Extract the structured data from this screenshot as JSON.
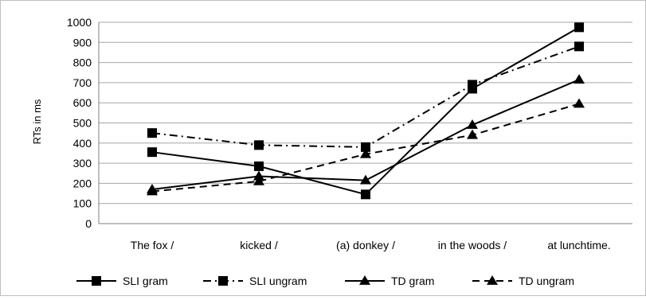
{
  "chart_data": {
    "type": "line",
    "categories": [
      "The fox /",
      "kicked /",
      "(a) donkey /",
      "in the woods /",
      "at lunchtime."
    ],
    "ylabel": "RTs in ms",
    "xlabel": "",
    "ylim": [
      0,
      1000
    ],
    "yticks": [
      0,
      100,
      200,
      300,
      400,
      500,
      600,
      700,
      800,
      900,
      1000
    ],
    "grid": "horizontal",
    "legend_position": "bottom",
    "series": [
      {
        "name": "SLI gram",
        "values": [
          355,
          285,
          145,
          670,
          975
        ],
        "marker": "square",
        "dash": "solid",
        "color": "#000000"
      },
      {
        "name": "SLI ungram",
        "values": [
          450,
          390,
          380,
          690,
          880
        ],
        "marker": "square",
        "dash": "dashdot",
        "color": "#000000"
      },
      {
        "name": "TD gram",
        "values": [
          170,
          235,
          215,
          490,
          715
        ],
        "marker": "triangle",
        "dash": "solid",
        "color": "#000000"
      },
      {
        "name": "TD ungram",
        "values": [
          160,
          210,
          345,
          440,
          595
        ],
        "marker": "triangle",
        "dash": "dashed",
        "color": "#000000"
      }
    ]
  }
}
